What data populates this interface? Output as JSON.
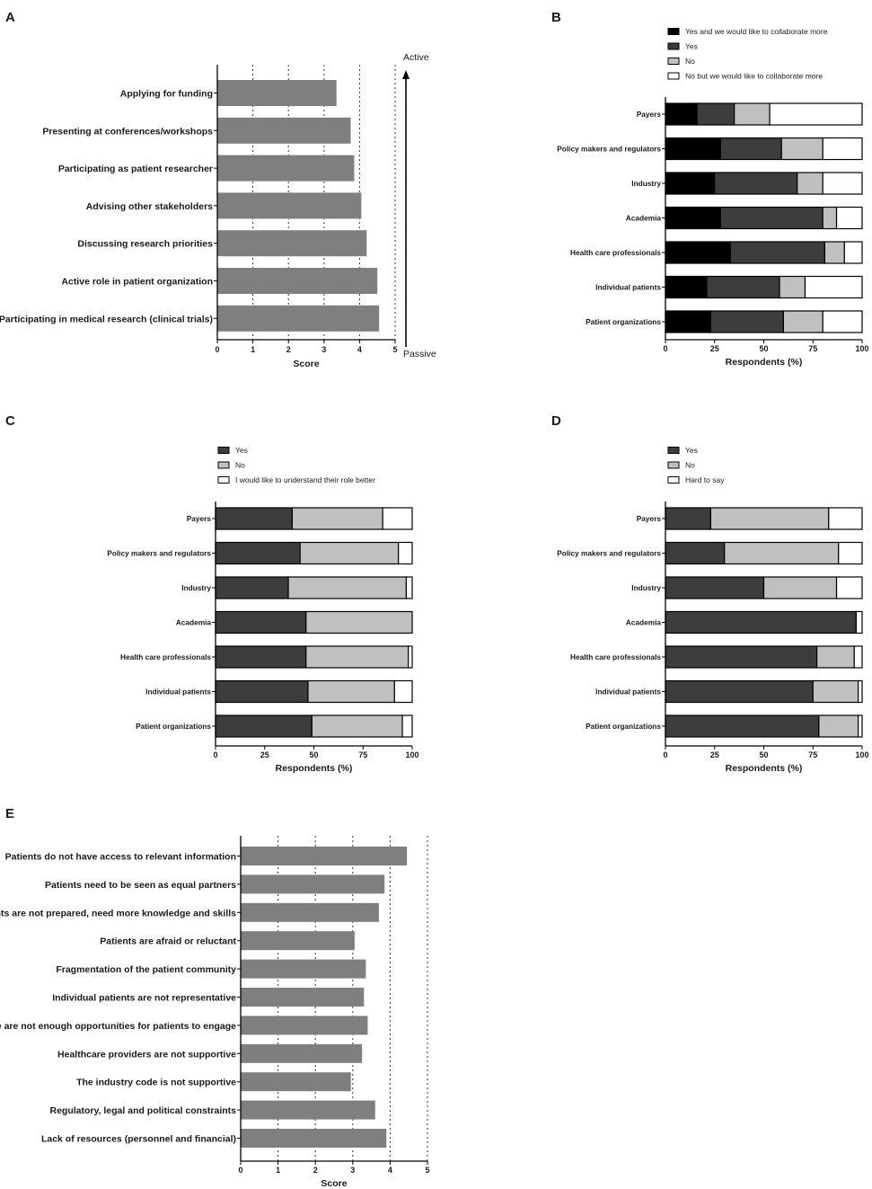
{
  "chart_data": [
    {
      "panel": "A",
      "type": "bar",
      "orientation": "horizontal",
      "categories": [
        "Applying for funding",
        "Presenting at conferences/workshops",
        "Participating as patient researcher",
        "Advising other stakeholders",
        "Discussing research priorities",
        "Active role in patient organization",
        "Participating in medical research (clinical trials)"
      ],
      "values": [
        3.35,
        3.75,
        3.85,
        4.05,
        4.2,
        4.5,
        4.55
      ],
      "xlabel": "Score",
      "xlim": [
        0,
        5
      ],
      "ticks": [
        0,
        1,
        2,
        3,
        4,
        5
      ],
      "arrow_top_label": "Active",
      "arrow_bottom_label": "Passive",
      "grid": "dotted vertical"
    },
    {
      "panel": "B",
      "type": "bar",
      "stacked": true,
      "orientation": "horizontal",
      "categories": [
        "Payers",
        "Policy makers and regulators",
        "Industry",
        "Academia",
        "Health care professionals",
        "Individual patients",
        "Patient organizations"
      ],
      "series": [
        {
          "name": "Yes and we would like to collaborate more",
          "color": "#000000",
          "values": [
            16,
            28,
            25,
            28,
            33,
            21,
            23
          ]
        },
        {
          "name": "Yes",
          "color": "#3d3d3d",
          "values": [
            19,
            31,
            42,
            52,
            48,
            37,
            37
          ]
        },
        {
          "name": "No",
          "color": "#c0c0c0",
          "values": [
            18,
            21,
            13,
            7,
            10,
            13,
            20
          ]
        },
        {
          "name": "No but we would like to collaborate more",
          "color": "#ffffff",
          "values": [
            47,
            20,
            20,
            13,
            9,
            29,
            20
          ]
        }
      ],
      "xlabel": "Respondents (%)",
      "xlim": [
        0,
        100
      ],
      "ticks": [
        0,
        25,
        50,
        75,
        100
      ]
    },
    {
      "panel": "C",
      "type": "bar",
      "stacked": true,
      "orientation": "horizontal",
      "categories": [
        "Payers",
        "Policy makers and regulators",
        "Industry",
        "Academia",
        "Health care professionals",
        "Individual patients",
        "Patient organizations"
      ],
      "series": [
        {
          "name": "Yes",
          "color": "#3d3d3d",
          "values": [
            39,
            43,
            37,
            46,
            46,
            47,
            49
          ]
        },
        {
          "name": "No",
          "color": "#c0c0c0",
          "values": [
            46,
            50,
            60,
            54,
            52,
            44,
            46
          ]
        },
        {
          "name": "I would like to understand their role better",
          "color": "#ffffff",
          "values": [
            15,
            7,
            3,
            0,
            2,
            9,
            5
          ]
        }
      ],
      "xlabel": "Respondents (%)",
      "xlim": [
        0,
        100
      ],
      "ticks": [
        0,
        25,
        50,
        75,
        100
      ]
    },
    {
      "panel": "D",
      "type": "bar",
      "stacked": true,
      "orientation": "horizontal",
      "categories": [
        "Payers",
        "Policy makers and regulators",
        "Industry",
        "Academia",
        "Health care professionals",
        "Individual patients",
        "Patient organizations"
      ],
      "series": [
        {
          "name": "Yes",
          "color": "#3d3d3d",
          "values": [
            23,
            30,
            50,
            97,
            77,
            75,
            78
          ]
        },
        {
          "name": "No",
          "color": "#c0c0c0",
          "values": [
            60,
            58,
            37,
            0,
            19,
            23,
            20
          ]
        },
        {
          "name": "Hard to say",
          "color": "#ffffff",
          "values": [
            17,
            12,
            13,
            3,
            4,
            2,
            2
          ]
        }
      ],
      "xlabel": "Respondents (%)",
      "xlim": [
        0,
        100
      ],
      "ticks": [
        0,
        25,
        50,
        75,
        100
      ]
    },
    {
      "panel": "E",
      "type": "bar",
      "orientation": "horizontal",
      "categories": [
        "Patients do not have access to relevant information",
        "Patients need to be seen as equal partners",
        "Patients are not prepared, need more knowledge and skills",
        "Patients are afraid or reluctant",
        "Fragmentation of the patient community",
        "Individual patients are not representative",
        "There are not enough opportunities for patients to engage",
        "Healthcare providers are not supportive",
        "The industry code is not supportive",
        "Regulatory, legal and political constraints",
        "Lack of resources (personnel and financial)"
      ],
      "values": [
        4.45,
        3.85,
        3.7,
        3.05,
        3.35,
        3.3,
        3.4,
        3.25,
        2.95,
        3.6,
        3.9
      ],
      "xlabel": "Score",
      "xlim": [
        0,
        5
      ],
      "ticks": [
        0,
        1,
        2,
        3,
        4,
        5
      ],
      "grid": "dotted vertical"
    }
  ]
}
